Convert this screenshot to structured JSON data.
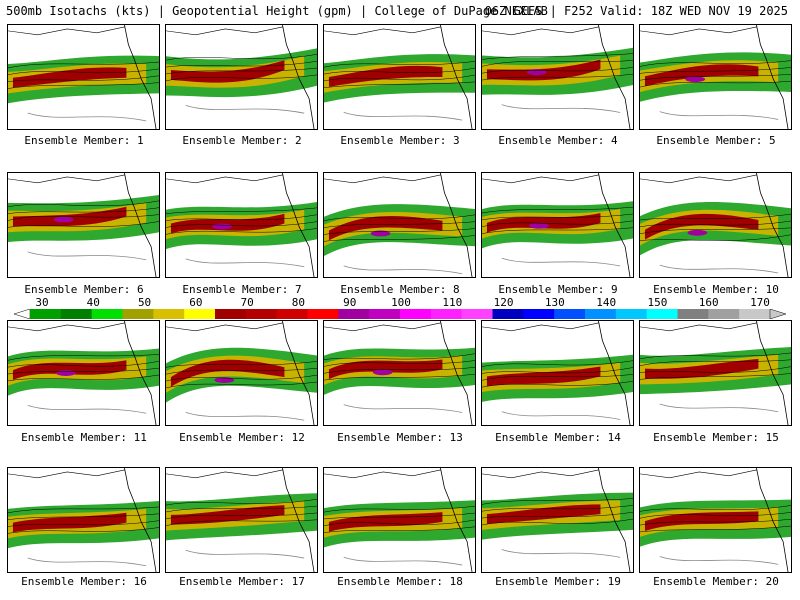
{
  "header": {
    "title": "500mb Isotachs (kts) | Geopotential Height (gpm) | College of DuPage NEXLAB",
    "run": "06Z GEFS | F252 Valid: 18Z WED NOV 19 2025"
  },
  "legend": {
    "labels": [
      "30",
      "40",
      "50",
      "60",
      "70",
      "80",
      "90",
      "100",
      "110",
      "120",
      "130",
      "140",
      "150",
      "160",
      "170"
    ],
    "colors": [
      "#00a000",
      "#008000",
      "#00e000",
      "#a0a000",
      "#d8c000",
      "#ffff00",
      "#a00000",
      "#b40000",
      "#d00000",
      "#ff0000",
      "#a000a0",
      "#c000c0",
      "#ff00ff",
      "#ff20ff",
      "#ff40ff",
      "#0000c0",
      "#0000ff",
      "#0050ff",
      "#0090ff",
      "#00c8ff",
      "#00ffff",
      "#808080",
      "#a0a0a0",
      "#c8c8c8"
    ]
  },
  "panels": [
    {
      "label": "Ensemble Member: 1"
    },
    {
      "label": "Ensemble Member: 2"
    },
    {
      "label": "Ensemble Member: 3"
    },
    {
      "label": "Ensemble Member: 4"
    },
    {
      "label": "Ensemble Member: 5"
    },
    {
      "label": "Ensemble Member: 6"
    },
    {
      "label": "Ensemble Member: 7"
    },
    {
      "label": "Ensemble Member: 8"
    },
    {
      "label": "Ensemble Member: 9"
    },
    {
      "label": "Ensemble Member: 10"
    },
    {
      "label": "Ensemble Member: 11"
    },
    {
      "label": "Ensemble Member: 12"
    },
    {
      "label": "Ensemble Member: 13"
    },
    {
      "label": "Ensemble Member: 14"
    },
    {
      "label": "Ensemble Member: 15"
    },
    {
      "label": "Ensemble Member: 16"
    },
    {
      "label": "Ensemble Member: 17"
    },
    {
      "label": "Ensemble Member: 18"
    },
    {
      "label": "Ensemble Member: 19"
    },
    {
      "label": "Ensemble Member: 20"
    }
  ]
}
